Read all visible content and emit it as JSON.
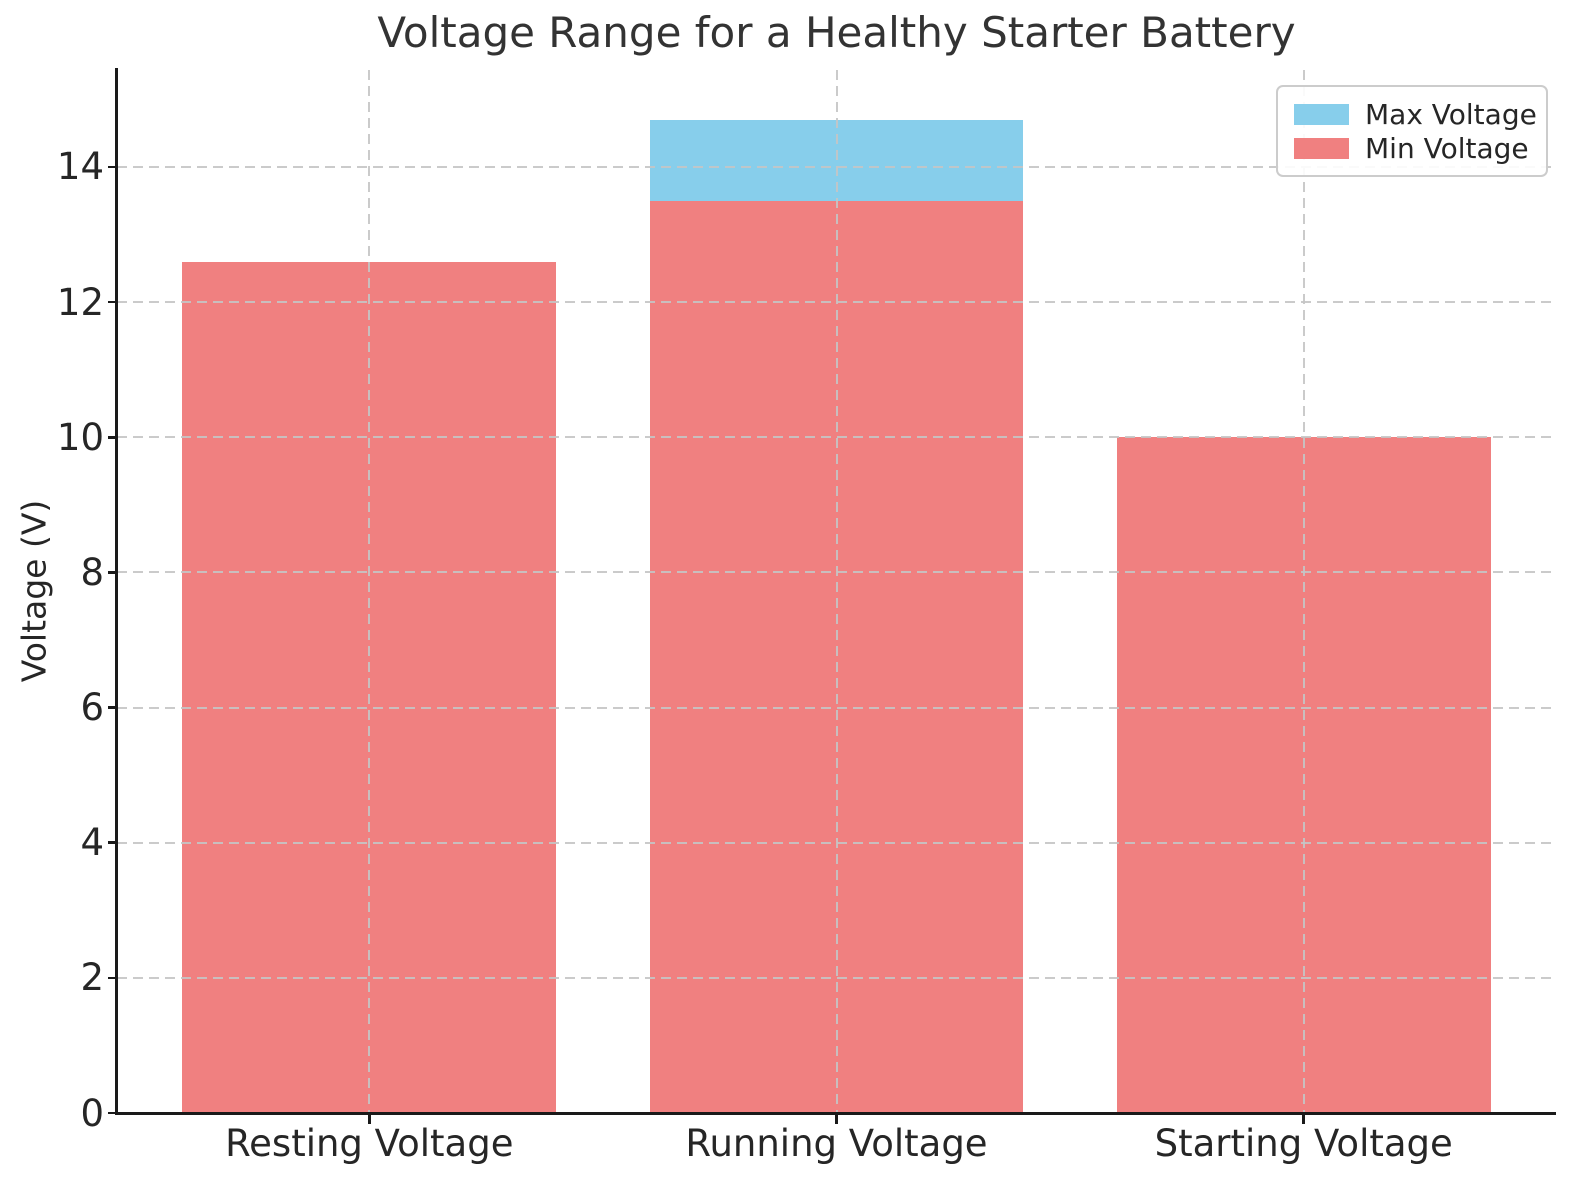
{
  "chart_data": {
    "type": "bar",
    "stacked": true,
    "title": "Voltage Range for a Healthy Starter Battery",
    "xlabel": "",
    "ylabel": "Voltage (V)",
    "categories": [
      "Resting Voltage",
      "Running Voltage",
      "Starting Voltage"
    ],
    "series": [
      {
        "name": "Min Voltage",
        "color": "#f08080",
        "values": [
          12.6,
          13.5,
          10.0
        ]
      },
      {
        "name": "Max Voltage",
        "color": "#87ceeb",
        "values": [
          12.6,
          14.7,
          10.0
        ]
      }
    ],
    "ylim": [
      0,
      15.435
    ],
    "yticks": [
      0,
      2,
      4,
      6,
      8,
      10,
      12,
      14
    ],
    "grid": true,
    "grid_style": "dashed",
    "legend": {
      "position": "upper right",
      "entries": [
        {
          "label": "Max Voltage",
          "color": "#87ceeb"
        },
        {
          "label": "Min Voltage",
          "color": "#f08080"
        }
      ]
    }
  }
}
